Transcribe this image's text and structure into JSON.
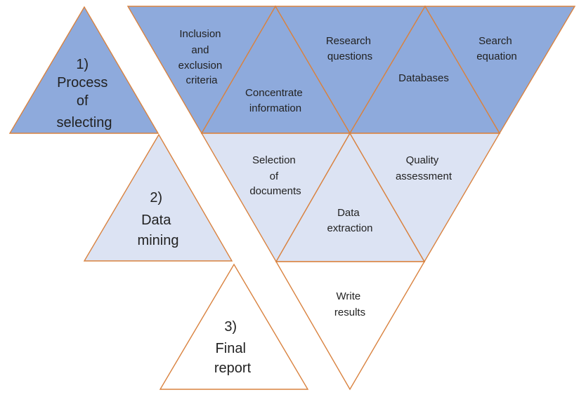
{
  "phases": [
    {
      "number": "1)",
      "lines": [
        "Process",
        "of",
        "selecting"
      ]
    },
    {
      "number": "2)",
      "lines": [
        "Data",
        "mining"
      ]
    },
    {
      "number": "3)",
      "lines": [
        "Final",
        "report"
      ]
    }
  ],
  "steps": {
    "inclusion_criteria": [
      "Inclusion",
      "and",
      "exclusion",
      "criteria"
    ],
    "research_questions": [
      "Research",
      "questions"
    ],
    "search_equation": [
      "Search",
      "equation"
    ],
    "concentrate_information": [
      "Concentrate",
      "information"
    ],
    "databases": [
      "Databases"
    ],
    "selection_of_documents": [
      "Selection",
      "of",
      "documents"
    ],
    "quality_assessment": [
      "Quality",
      "assessment"
    ],
    "data_extraction": [
      "Data",
      "extraction"
    ],
    "write_results": [
      "Write",
      "results"
    ]
  },
  "colors": {
    "phase1_fill": "#8eaadc",
    "phase2_fill": "#dce3f3",
    "phase3_fill": "#ffffff",
    "outline": "#d9823f"
  }
}
